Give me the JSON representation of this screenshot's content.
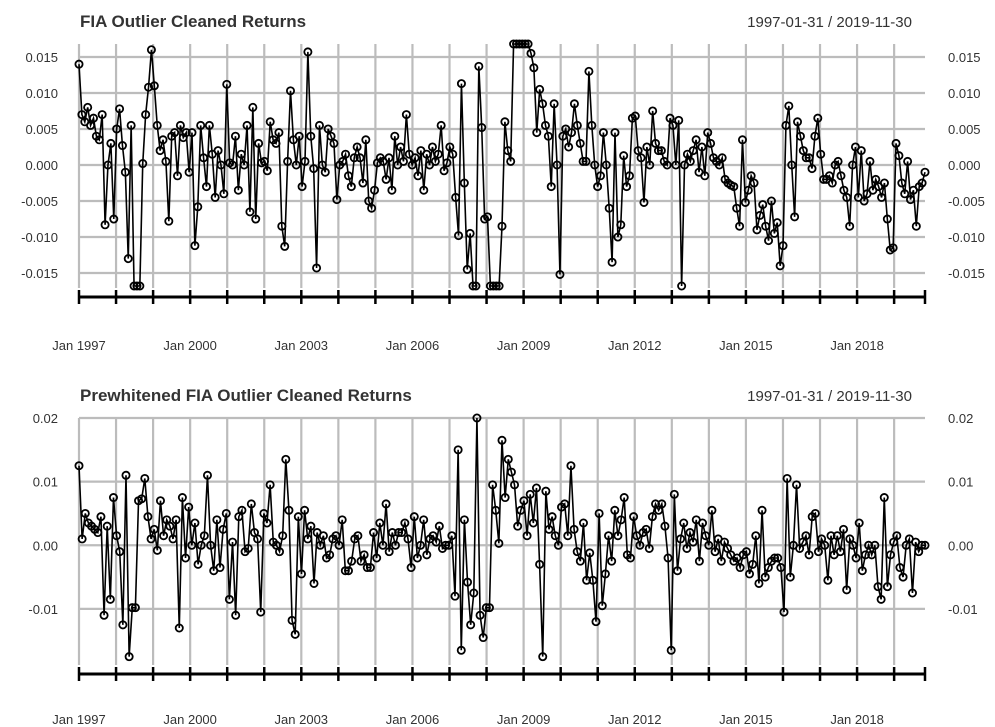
{
  "chart_data": [
    {
      "type": "line",
      "title": "FIA Outlier Cleaned Returns",
      "date_range": "1997-01-31 / 2019-11-30",
      "x_tick_labels": [
        "Jan 1997",
        "Jan 2000",
        "Jan 2003",
        "Jan 2006",
        "Jan 2009",
        "Jan 2012",
        "Jan 2015",
        "Jan 2018"
      ],
      "y_ticks": [
        0.015,
        0.01,
        0.005,
        0,
        -0.005,
        -0.01,
        -0.015
      ],
      "y_tick_labels": [
        "0.015",
        "0.010",
        "0.005",
        "0.000",
        "-0.005",
        "-0.010",
        "-0.015"
      ],
      "ylim": [
        -0.0168,
        0.0168
      ],
      "grid": true,
      "markers": "circle",
      "series": [
        {
          "start": "1997-01-31",
          "frequency": "monthly",
          "values": [
            0.014,
            0.007,
            0.006,
            0.008,
            0.0055,
            0.0065,
            0.004,
            0.0035,
            0.007,
            -0.0083,
            0.0,
            0.003,
            -0.0075,
            0.005,
            0.0078,
            0.0027,
            -0.001,
            -0.013,
            0.0055,
            -0.0168,
            -0.0168,
            -0.0168,
            0.0002,
            0.007,
            0.0108,
            0.016,
            0.011,
            0.0055,
            0.002,
            0.0035,
            0.0005,
            -0.0078,
            0.004,
            0.0045,
            -0.0015,
            0.0055,
            0.0038,
            0.0045,
            -0.001,
            0.0045,
            -0.0112,
            -0.0058,
            0.0055,
            0.001,
            -0.003,
            0.0055,
            0.0015,
            -0.0045,
            0.002,
            0.0,
            -0.004,
            0.0112,
            0.0003,
            0.0,
            0.004,
            -0.0035,
            0.0015,
            0.0,
            0.0055,
            -0.0065,
            0.008,
            -0.0075,
            0.003,
            0.0003,
            0.0005,
            -0.0008,
            0.006,
            0.0035,
            0.003,
            0.0045,
            -0.0085,
            -0.0113,
            0.0005,
            0.0103,
            0.0035,
            0.0,
            0.004,
            -0.003,
            0.0005,
            0.0157,
            0.004,
            -0.0005,
            -0.0143,
            0.0055,
            0.0,
            -0.001,
            0.005,
            0.004,
            0.003,
            -0.0048,
            0.0,
            0.0005,
            0.0015,
            -0.0015,
            -0.003,
            0.001,
            0.0025,
            0.001,
            -0.0025,
            0.0035,
            -0.005,
            -0.006,
            -0.0035,
            0.0003,
            0.001,
            0.0005,
            -0.002,
            0.001,
            -0.0035,
            0.004,
            0.0,
            0.0025,
            0.0005,
            0.007,
            0.0015,
            0.0,
            0.001,
            -0.0015,
            0.002,
            -0.0035,
            0.0015,
            0.0,
            0.0025,
            0.0005,
            0.0015,
            0.0055,
            -0.0008,
            0.0003,
            0.0025,
            0.0015,
            -0.0045,
            -0.0098,
            0.0113,
            -0.0025,
            -0.0145,
            -0.0095,
            -0.0168,
            -0.0168,
            0.0137,
            0.0052,
            -0.0075,
            -0.0072,
            -0.0168,
            -0.0168,
            -0.0168,
            -0.0168,
            -0.0085,
            0.006,
            0.002,
            0.0005,
            0.0168,
            0.0168,
            0.0168,
            0.0168,
            0.0168,
            0.0168,
            0.0155,
            0.0135,
            0.0045,
            0.0105,
            0.0085,
            0.0055,
            0.004,
            -0.003,
            0.0085,
            0.0,
            -0.0152,
            0.004,
            0.005,
            0.0025,
            0.0045,
            0.0085,
            0.0055,
            0.003,
            0.0005,
            0.0005,
            0.013,
            0.0055,
            0.0,
            -0.003,
            -0.0015,
            0.0045,
            0.0,
            -0.006,
            -0.0135,
            0.0045,
            -0.01,
            -0.0083,
            0.0013,
            -0.003,
            -0.0015,
            0.0065,
            0.0068,
            0.002,
            0.001,
            -0.0052,
            0.0025,
            0.0,
            0.0075,
            0.003,
            0.002,
            0.002,
            0.0005,
            0.0,
            0.0065,
            0.0055,
            0.0,
            0.0062,
            -0.0168,
            0.0,
            0.0015,
            0.0005,
            0.002,
            0.0035,
            -0.001,
            0.0025,
            -0.0015,
            0.0045,
            0.003,
            0.001,
            0.0005,
            0.0,
            0.001,
            -0.002,
            -0.0025,
            -0.0028,
            -0.003,
            -0.006,
            -0.0085,
            0.0035,
            -0.0052,
            -0.0035,
            -0.0015,
            -0.0025,
            -0.009,
            -0.007,
            -0.0055,
            -0.0085,
            -0.0105,
            -0.005,
            -0.0095,
            -0.008,
            -0.014,
            -0.0112,
            0.0055,
            0.0082,
            0.0,
            -0.0072,
            0.006,
            0.004,
            0.002,
            0.001,
            0.001,
            -0.0005,
            0.004,
            0.0065,
            0.0015,
            -0.002,
            -0.002,
            -0.0015,
            -0.0025,
            0.0,
            0.0005,
            -0.0015,
            -0.0035,
            -0.0045,
            -0.0085,
            0.0,
            0.0025,
            -0.0045,
            0.002,
            -0.005,
            -0.004,
            0.0005,
            -0.0035,
            -0.002,
            -0.003,
            -0.0045,
            -0.0025,
            -0.0075,
            -0.0118,
            -0.0115,
            0.003,
            0.0013,
            -0.0025,
            -0.004,
            0.0005,
            -0.0048,
            -0.0035,
            -0.0085,
            -0.003,
            -0.0025,
            -0.001
          ]
        }
      ]
    },
    {
      "type": "line",
      "title": "Prewhitened FIA Outlier Cleaned Returns",
      "date_range": "1997-01-31 / 2019-11-30",
      "x_tick_labels": [
        "Jan 1997",
        "Jan 2000",
        "Jan 2003",
        "Jan 2006",
        "Jan 2009",
        "Jan 2012",
        "Jan 2015",
        "Jan 2018"
      ],
      "y_ticks": [
        0.02,
        0.01,
        0,
        -0.01
      ],
      "y_tick_labels": [
        "0.02",
        "0.01",
        "0.00",
        "-0.01"
      ],
      "ylim": [
        -0.0185,
        0.02
      ],
      "grid": true,
      "markers": "circle",
      "series": [
        {
          "start": "1997-01-31",
          "frequency": "monthly",
          "values": [
            0.0125,
            0.001,
            0.005,
            0.0035,
            0.003,
            0.0025,
            0.002,
            0.0045,
            -0.011,
            0.003,
            -0.0085,
            0.0075,
            0.0015,
            -0.001,
            -0.0125,
            0.011,
            -0.0175,
            -0.0098,
            -0.0098,
            0.007,
            0.0073,
            0.0105,
            0.0045,
            0.001,
            0.0025,
            -0.0008,
            0.007,
            0.0015,
            0.004,
            0.003,
            0.001,
            0.004,
            -0.013,
            0.0075,
            -0.002,
            0.006,
            0.0,
            0.0035,
            -0.003,
            0.0,
            0.0015,
            0.011,
            0.0,
            -0.004,
            0.004,
            -0.0035,
            0.0025,
            0.005,
            -0.0085,
            0.0005,
            -0.011,
            0.0045,
            0.0055,
            -0.001,
            -0.0005,
            0.0065,
            0.002,
            0.001,
            -0.0105,
            0.005,
            0.0035,
            0.0095,
            0.0005,
            0.0,
            -0.001,
            0.0015,
            0.0135,
            0.0055,
            -0.0118,
            -0.014,
            0.0045,
            -0.0045,
            0.0055,
            0.001,
            0.003,
            -0.006,
            0.002,
            0.0,
            0.0015,
            -0.002,
            -0.0015,
            0.001,
            0.0015,
            0.0,
            0.004,
            -0.004,
            -0.004,
            -0.0025,
            0.001,
            0.0015,
            -0.0025,
            -0.0015,
            -0.0035,
            -0.0035,
            0.002,
            -0.002,
            0.0035,
            0.0,
            0.0065,
            -0.001,
            0.002,
            0.0,
            0.002,
            0.002,
            0.0035,
            0.001,
            -0.0035,
            0.0045,
            -0.002,
            0.0,
            0.004,
            -0.0015,
            0.001,
            0.0015,
            0.0005,
            0.003,
            -0.0005,
            0.0,
            0.0,
            0.0015,
            -0.008,
            0.015,
            -0.0165,
            0.004,
            -0.0058,
            -0.0125,
            -0.0075,
            0.02,
            -0.011,
            -0.0145,
            -0.0098,
            -0.0098,
            0.0095,
            0.0055,
            0.0003,
            0.0165,
            0.0075,
            0.0135,
            0.0115,
            0.0095,
            0.003,
            0.0055,
            0.007,
            0.0015,
            0.008,
            0.0035,
            0.009,
            -0.003,
            -0.0175,
            0.0085,
            0.0025,
            0.0045,
            0.0015,
            0.0,
            0.006,
            0.0065,
            0.0015,
            0.0125,
            0.0025,
            -0.001,
            -0.0025,
            0.0035,
            -0.0055,
            -0.0012,
            -0.0055,
            -0.012,
            0.005,
            -0.0095,
            -0.0045,
            0.0015,
            -0.0025,
            0.0055,
            0.0015,
            0.004,
            0.0075,
            -0.0015,
            -0.002,
            0.0045,
            0.0015,
            0.0,
            0.002,
            0.0025,
            -0.0005,
            0.0045,
            0.0065,
            0.0055,
            0.0065,
            0.003,
            -0.002,
            -0.0165,
            0.008,
            -0.004,
            0.001,
            0.0035,
            -0.0005,
            0.002,
            0.0005,
            0.004,
            -0.0025,
            0.0035,
            0.0015,
            0.0,
            0.0055,
            -0.001,
            0.001,
            -0.0025,
            0.0005,
            -0.0005,
            -0.0015,
            -0.0025,
            -0.002,
            -0.0035,
            -0.0015,
            -0.001,
            -0.0045,
            -0.003,
            0.0015,
            -0.006,
            0.0055,
            -0.005,
            -0.0035,
            -0.0025,
            -0.002,
            -0.002,
            -0.0035,
            -0.0105,
            0.0105,
            -0.005,
            0.0,
            0.0095,
            -0.0005,
            0.0005,
            0.0015,
            -0.0015,
            0.0045,
            0.005,
            -0.001,
            0.001,
            0.0,
            -0.0055,
            0.0015,
            -0.0015,
            0.0015,
            -0.001,
            0.0025,
            -0.007,
            0.001,
            0.0,
            -0.002,
            0.0035,
            -0.004,
            -0.0015,
            0.0,
            -0.0015,
            0.0,
            -0.0065,
            -0.0085,
            0.0075,
            -0.0065,
            -0.0015,
            0.0005,
            0.0015,
            -0.0035,
            -0.005,
            0.0,
            0.001,
            -0.0075,
            0.0005,
            -0.001,
            0.0,
            0.0
          ]
        }
      ]
    }
  ]
}
